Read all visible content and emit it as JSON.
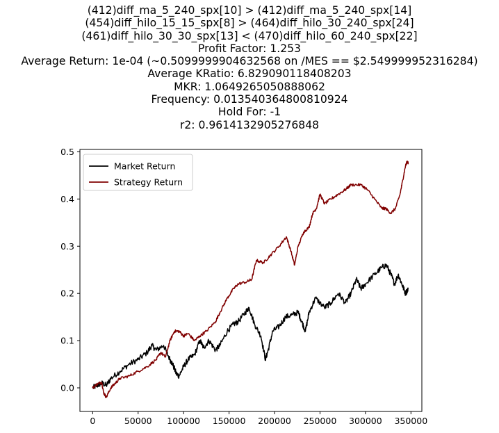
{
  "title_lines": [
    "(412)diff_ma_5_240_spx[10] > (412)diff_ma_5_240_spx[14]",
    "(454)diff_hilo_15_15_spx[8] > (464)diff_hilo_30_240_spx[24]",
    "(461)diff_hilo_30_30_spx[13] < (470)diff_hilo_60_240_spx[22]",
    "Profit Factor: 1.253",
    "Average Return: 1e-04 (~0.5099999904632568 on /MES == $2.549999952316284)",
    "Average KRatio: 6.829090118408203",
    "MKR: 1.0649265050888062",
    "Frequency: 0.013540364800810924",
    "Hold For: -1",
    "r2: 0.9614132905276848"
  ],
  "chart_data": {
    "type": "line",
    "xlim": [
      -14000,
      362000
    ],
    "ylim": [
      -0.05,
      0.505
    ],
    "x_ticks": [
      0,
      50000,
      100000,
      150000,
      200000,
      250000,
      300000,
      350000
    ],
    "x_tick_labels": [
      "0",
      "50000",
      "100000",
      "150000",
      "200000",
      "250000",
      "300000",
      "350000"
    ],
    "y_ticks": [
      0.0,
      0.1,
      0.2,
      0.3,
      0.4,
      0.5
    ],
    "y_tick_labels": [
      "0.0",
      "0.1",
      "0.2",
      "0.3",
      "0.4",
      "0.5"
    ],
    "grid": false,
    "legend_position": "top-left",
    "series": [
      {
        "name": "Market Return",
        "color": "#000000",
        "points": [
          [
            0,
            0.0
          ],
          [
            5000,
            0.005
          ],
          [
            10000,
            0.01
          ],
          [
            15000,
            0.005
          ],
          [
            20000,
            0.02
          ],
          [
            30000,
            0.035
          ],
          [
            40000,
            0.05
          ],
          [
            50000,
            0.06
          ],
          [
            60000,
            0.075
          ],
          [
            65000,
            0.09
          ],
          [
            70000,
            0.08
          ],
          [
            78000,
            0.09
          ],
          [
            85000,
            0.06
          ],
          [
            88000,
            0.05
          ],
          [
            92000,
            0.03
          ],
          [
            95000,
            0.025
          ],
          [
            100000,
            0.045
          ],
          [
            105000,
            0.06
          ],
          [
            112000,
            0.07
          ],
          [
            118000,
            0.1
          ],
          [
            122000,
            0.085
          ],
          [
            128000,
            0.1
          ],
          [
            135000,
            0.08
          ],
          [
            140000,
            0.09
          ],
          [
            148000,
            0.12
          ],
          [
            155000,
            0.135
          ],
          [
            160000,
            0.14
          ],
          [
            168000,
            0.16
          ],
          [
            172000,
            0.17
          ],
          [
            178000,
            0.135
          ],
          [
            185000,
            0.11
          ],
          [
            190000,
            0.06
          ],
          [
            193000,
            0.08
          ],
          [
            198000,
            0.12
          ],
          [
            205000,
            0.13
          ],
          [
            212000,
            0.15
          ],
          [
            220000,
            0.155
          ],
          [
            226000,
            0.16
          ],
          [
            230000,
            0.14
          ],
          [
            234000,
            0.12
          ],
          [
            238000,
            0.16
          ],
          [
            245000,
            0.19
          ],
          [
            255000,
            0.17
          ],
          [
            262000,
            0.18
          ],
          [
            270000,
            0.2
          ],
          [
            278000,
            0.18
          ],
          [
            284000,
            0.2
          ],
          [
            290000,
            0.23
          ],
          [
            295000,
            0.21
          ],
          [
            300000,
            0.22
          ],
          [
            310000,
            0.24
          ],
          [
            318000,
            0.255
          ],
          [
            323000,
            0.26
          ],
          [
            328000,
            0.24
          ],
          [
            332000,
            0.22
          ],
          [
            336000,
            0.24
          ],
          [
            340000,
            0.22
          ],
          [
            344000,
            0.2
          ],
          [
            347000,
            0.21
          ]
        ]
      },
      {
        "name": "Strategy Return",
        "color": "#800000",
        "points": [
          [
            0,
            0.0
          ],
          [
            5000,
            0.008
          ],
          [
            10000,
            0.012
          ],
          [
            12000,
            -0.01
          ],
          [
            15000,
            -0.02
          ],
          [
            20000,
            0.0
          ],
          [
            25000,
            0.01
          ],
          [
            30000,
            0.02
          ],
          [
            40000,
            0.025
          ],
          [
            50000,
            0.035
          ],
          [
            60000,
            0.045
          ],
          [
            70000,
            0.06
          ],
          [
            75000,
            0.075
          ],
          [
            80000,
            0.065
          ],
          [
            85000,
            0.1
          ],
          [
            90000,
            0.12
          ],
          [
            95000,
            0.12
          ],
          [
            100000,
            0.11
          ],
          [
            105000,
            0.115
          ],
          [
            112000,
            0.1
          ],
          [
            118000,
            0.11
          ],
          [
            125000,
            0.12
          ],
          [
            135000,
            0.14
          ],
          [
            140000,
            0.16
          ],
          [
            148000,
            0.19
          ],
          [
            155000,
            0.21
          ],
          [
            160000,
            0.22
          ],
          [
            170000,
            0.225
          ],
          [
            175000,
            0.23
          ],
          [
            180000,
            0.27
          ],
          [
            188000,
            0.265
          ],
          [
            195000,
            0.28
          ],
          [
            205000,
            0.3
          ],
          [
            213000,
            0.32
          ],
          [
            218000,
            0.29
          ],
          [
            222000,
            0.26
          ],
          [
            226000,
            0.3
          ],
          [
            232000,
            0.33
          ],
          [
            238000,
            0.34
          ],
          [
            242000,
            0.37
          ],
          [
            246000,
            0.38
          ],
          [
            250000,
            0.41
          ],
          [
            255000,
            0.39
          ],
          [
            262000,
            0.4
          ],
          [
            270000,
            0.41
          ],
          [
            278000,
            0.42
          ],
          [
            284000,
            0.43
          ],
          [
            295000,
            0.43
          ],
          [
            302000,
            0.42
          ],
          [
            310000,
            0.4
          ],
          [
            318000,
            0.38
          ],
          [
            322000,
            0.38
          ],
          [
            328000,
            0.37
          ],
          [
            333000,
            0.38
          ],
          [
            338000,
            0.41
          ],
          [
            341000,
            0.44
          ],
          [
            344000,
            0.47
          ],
          [
            346000,
            0.48
          ],
          [
            347000,
            0.475
          ]
        ]
      }
    ]
  }
}
